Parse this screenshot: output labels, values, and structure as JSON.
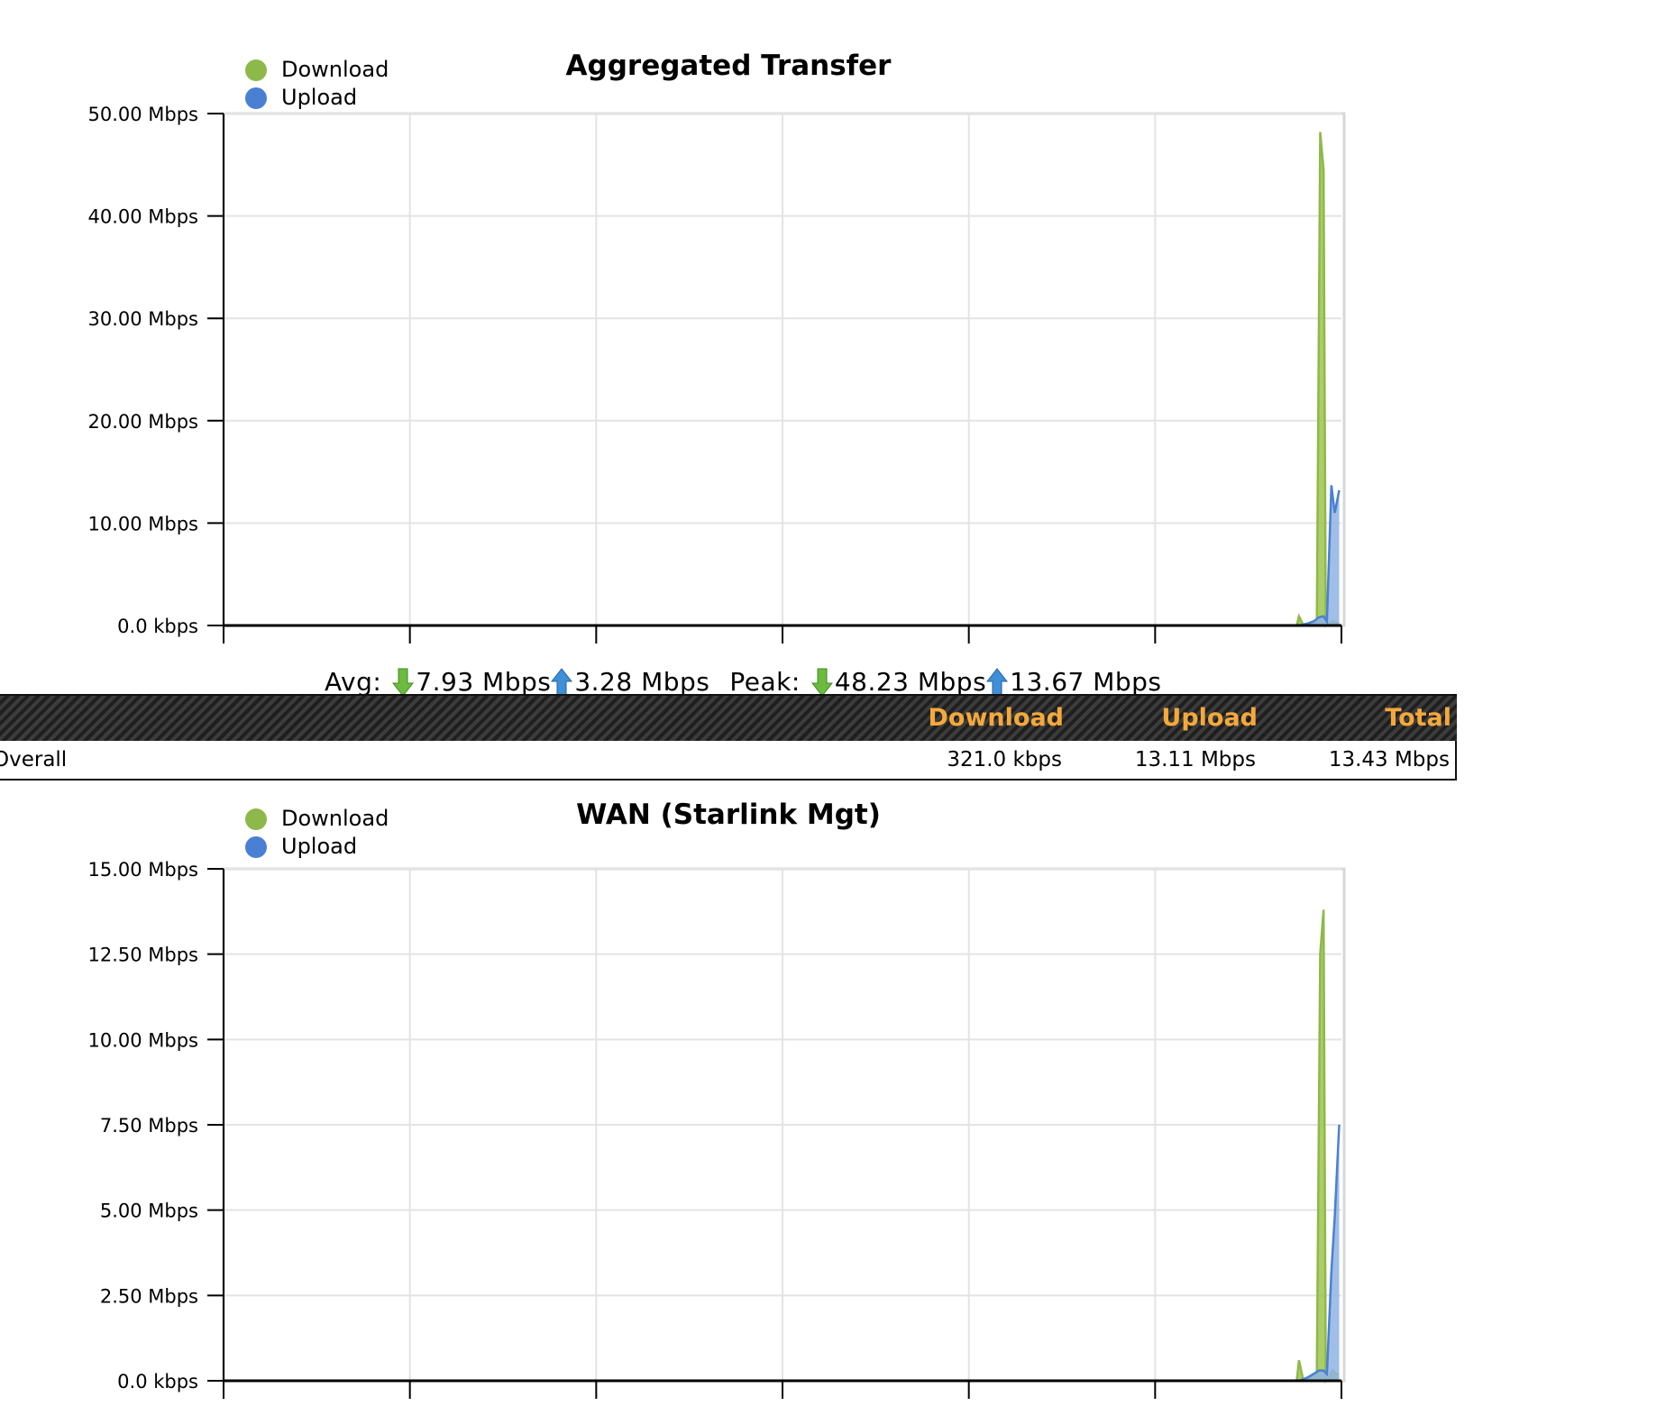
{
  "legend": {
    "download_label": "Download",
    "upload_label": "Upload"
  },
  "colors": {
    "download": "#8fb84a",
    "upload": "#4a80d4",
    "download_fill": "#9cc64f",
    "upload_fill": "#8fb3e3"
  },
  "stats": {
    "avg_label": "Avg:",
    "avg_download": "7.93 Mbps",
    "avg_upload": "3.28 Mbps",
    "peak_label": "Peak:",
    "peak_download": "48.23 Mbps",
    "peak_upload": "13.67 Mbps"
  },
  "table": {
    "headers": {
      "download": "Download",
      "upload": "Upload",
      "total": "Total"
    },
    "row": {
      "name": "Overall",
      "download": "321.0 kbps",
      "upload": "13.11 Mbps",
      "total": "13.43 Mbps"
    }
  },
  "chart_data": [
    {
      "type": "area",
      "title": "Aggregated Transfer",
      "ylim": [
        0,
        50
      ],
      "yunit": "Mbps",
      "y_ticks": [
        0,
        10,
        20,
        30,
        40,
        50
      ],
      "y_tick_labels": [
        "0.0 kbps",
        "10.00 Mbps",
        "20.00 Mbps",
        "30.00 Mbps",
        "40.00 Mbps",
        "50.00 Mbps"
      ],
      "xlim": [
        0,
        100
      ],
      "x_gridlines": 6,
      "grid": true,
      "legend_position": "top-left",
      "series": [
        {
          "name": "Download",
          "x": [
            0,
            96.0,
            96.2,
            96.6,
            97.0,
            97.2,
            97.8,
            98.1,
            98.4,
            98.6,
            98.9,
            99.2,
            99.5,
            99.8
          ],
          "values": [
            0,
            0,
            0.9,
            0,
            0,
            0.2,
            0.3,
            48.2,
            44.5,
            0,
            0.2,
            0.4,
            0.3,
            0.2
          ]
        },
        {
          "name": "Upload",
          "x": [
            0,
            96.2,
            96.6,
            97.0,
            97.5,
            98.0,
            98.4,
            98.7,
            99.1,
            99.4,
            99.8
          ],
          "values": [
            0,
            0,
            0.1,
            0.2,
            0.4,
            0.8,
            0.9,
            0.4,
            13.7,
            11.0,
            13.2
          ]
        }
      ]
    },
    {
      "type": "area",
      "title": "WAN (Starlink Mgt)",
      "ylim": [
        0,
        15
      ],
      "yunit": "Mbps",
      "y_ticks": [
        0,
        2.5,
        5,
        7.5,
        10,
        12.5,
        15
      ],
      "y_tick_labels": [
        "0.0 kbps",
        "2.50 Mbps",
        "5.00 Mbps",
        "7.50 Mbps",
        "10.00 Mbps",
        "12.50 Mbps",
        "15.00 Mbps"
      ],
      "xlim": [
        0,
        100
      ],
      "x_gridlines": 6,
      "grid": true,
      "legend_position": "top-left",
      "series": [
        {
          "name": "Download",
          "x": [
            0,
            96.0,
            96.2,
            96.6,
            97.0,
            97.2,
            97.8,
            98.1,
            98.4,
            98.6,
            98.9,
            99.2,
            99.5,
            99.8
          ],
          "values": [
            0,
            0,
            0.6,
            0,
            0,
            0.1,
            0.2,
            12.5,
            13.8,
            0,
            0.1,
            0.3,
            0.2,
            0.2
          ]
        },
        {
          "name": "Upload",
          "x": [
            0,
            96.2,
            96.6,
            97.0,
            97.5,
            98.0,
            98.4,
            98.7,
            99.1,
            99.4,
            99.8
          ],
          "values": [
            0,
            0,
            0.05,
            0.1,
            0.2,
            0.3,
            0.3,
            0.2,
            3.2,
            4.8,
            7.5
          ]
        }
      ]
    }
  ]
}
